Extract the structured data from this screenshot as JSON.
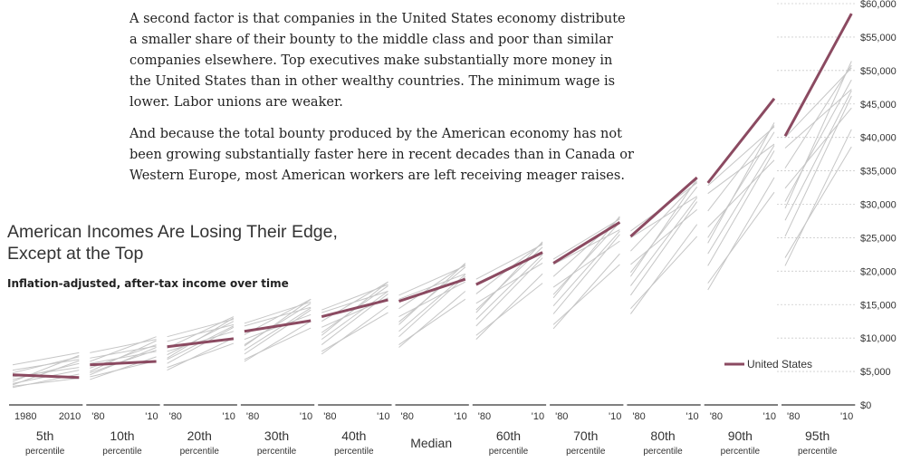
{
  "article": {
    "paragraphs": [
      "A second factor is that companies in the United States economy distribute a smaller share of their bounty to the middle class and poor than similar companies elsewhere. Top executives make substantially more money in the United States than in other wealthy countries. The minimum wage is lower. Labor unions are weaker.",
      "And because the total bounty produced by the American economy has not been growing substantially faster here in recent decades than in Canada or Western Europe, most American workers are left receiving meager raises."
    ]
  },
  "chart_title": {
    "line1": "American Incomes Are Losing Their Edge,",
    "line2": "Except at the Top"
  },
  "chart_subtitle": "Inflation-adjusted, after-tax income over time",
  "colors": {
    "us": "#8b4a61",
    "other": "#c6c6c6",
    "grid": "#cccccc",
    "axis": "#000000",
    "text": "#333333"
  },
  "chart_data": {
    "type": "line",
    "title": "American Incomes Are Losing Their Edge, Except at the Top",
    "subtitle": "Inflation-adjusted, after-tax income over time",
    "ylim": [
      0,
      60000
    ],
    "yticks": [
      {
        "value": 0,
        "label": "$0"
      },
      {
        "value": 5000,
        "label": "$5,000"
      },
      {
        "value": 10000,
        "label": "$10,000"
      },
      {
        "value": 15000,
        "label": "$15,000"
      },
      {
        "value": 20000,
        "label": "$20,000"
      },
      {
        "value": 25000,
        "label": "$25,000"
      },
      {
        "value": 30000,
        "label": "$30,000"
      },
      {
        "value": 35000,
        "label": "$35,000"
      },
      {
        "value": 40000,
        "label": "$40,000"
      },
      {
        "value": 45000,
        "label": "$45,000"
      },
      {
        "value": 50000,
        "label": "$50,000"
      },
      {
        "value": 55000,
        "label": "$55,000"
      },
      {
        "value": 60000,
        "label": "$60,000"
      }
    ],
    "xrange": [
      1980,
      2010
    ],
    "legend": {
      "label": "United States",
      "position": "right"
    },
    "panels": [
      {
        "name": "5th",
        "sub": "percentile",
        "ticks": [
          "1980",
          "2010"
        ],
        "us": [
          4500,
          4100
        ],
        "others": [
          [
            3200,
            5200
          ],
          [
            3800,
            6200
          ],
          [
            2800,
            4000
          ],
          [
            4800,
            7200
          ],
          [
            5200,
            6800
          ],
          [
            3500,
            7400
          ],
          [
            2600,
            4600
          ],
          [
            6000,
            7800
          ],
          [
            4200,
            5600
          ],
          [
            3000,
            6600
          ]
        ]
      },
      {
        "name": "10th",
        "sub": "percentile",
        "ticks": [
          "'80",
          "'10"
        ],
        "us": [
          6000,
          6500
        ],
        "others": [
          [
            4800,
            8200
          ],
          [
            5500,
            9000
          ],
          [
            4200,
            6600
          ],
          [
            6500,
            10200
          ],
          [
            7000,
            8800
          ],
          [
            5000,
            9600
          ],
          [
            3800,
            7200
          ],
          [
            7800,
            9800
          ],
          [
            6200,
            8000
          ],
          [
            4500,
            8600
          ]
        ]
      },
      {
        "name": "20th",
        "sub": "percentile",
        "ticks": [
          "'80",
          "'10"
        ],
        "us": [
          8700,
          9900
        ],
        "others": [
          [
            6800,
            11800
          ],
          [
            7500,
            12500
          ],
          [
            5600,
            9200
          ],
          [
            8500,
            13200
          ],
          [
            9500,
            12000
          ],
          [
            7000,
            13000
          ],
          [
            5200,
            10000
          ],
          [
            10200,
            12800
          ],
          [
            8000,
            11000
          ],
          [
            6200,
            11600
          ]
        ]
      },
      {
        "name": "30th",
        "sub": "percentile",
        "ticks": [
          "'80",
          "'10"
        ],
        "us": [
          11000,
          12600
        ],
        "others": [
          [
            8200,
            14500
          ],
          [
            9000,
            15200
          ],
          [
            6800,
            11500
          ],
          [
            10500,
            15800
          ],
          [
            11800,
            14600
          ],
          [
            8800,
            15800
          ],
          [
            6500,
            12500
          ],
          [
            12200,
            15400
          ],
          [
            9800,
            13500
          ],
          [
            7600,
            14200
          ]
        ]
      },
      {
        "name": "40th",
        "sub": "percentile",
        "ticks": [
          "'80",
          "'10"
        ],
        "us": [
          13200,
          15700
        ],
        "others": [
          [
            9800,
            17000
          ],
          [
            10800,
            17800
          ],
          [
            8000,
            13800
          ],
          [
            12500,
            18400
          ],
          [
            13800,
            17000
          ],
          [
            10400,
            18400
          ],
          [
            7600,
            14800
          ],
          [
            14200,
            18000
          ],
          [
            11600,
            16000
          ],
          [
            9000,
            16600
          ]
        ]
      },
      {
        "name": "Median",
        "sub": "",
        "ticks": [
          "'80",
          "'10"
        ],
        "us": [
          15500,
          18800
        ],
        "others": [
          [
            11000,
            19500
          ],
          [
            12400,
            20600
          ],
          [
            9000,
            15800
          ],
          [
            14400,
            21000
          ],
          [
            15800,
            19600
          ],
          [
            12000,
            21200
          ],
          [
            8600,
            17000
          ],
          [
            16400,
            20800
          ],
          [
            13200,
            18400
          ],
          [
            10200,
            19200
          ]
        ]
      },
      {
        "name": "60th",
        "sub": "percentile",
        "ticks": [
          "'80",
          "'10"
        ],
        "us": [
          18000,
          22800
        ],
        "others": [
          [
            12800,
            22500
          ],
          [
            14200,
            23600
          ],
          [
            10400,
            18200
          ],
          [
            16600,
            24200
          ],
          [
            18200,
            22600
          ],
          [
            13800,
            24400
          ],
          [
            9800,
            19600
          ],
          [
            18800,
            24000
          ],
          [
            15200,
            21200
          ],
          [
            11800,
            22000
          ]
        ]
      },
      {
        "name": "70th",
        "sub": "percentile",
        "ticks": [
          "'80",
          "'10"
        ],
        "us": [
          21200,
          27300
        ],
        "others": [
          [
            14800,
            26000
          ],
          [
            16500,
            27300
          ],
          [
            12000,
            21000
          ],
          [
            19200,
            28000
          ],
          [
            21000,
            26200
          ],
          [
            16000,
            28200
          ],
          [
            11400,
            22600
          ],
          [
            21800,
            27800
          ],
          [
            17600,
            24500
          ],
          [
            13600,
            25500
          ]
        ]
      },
      {
        "name": "80th",
        "sub": "percentile",
        "ticks": [
          "'80",
          "'10"
        ],
        "us": [
          25200,
          34000
        ],
        "others": [
          [
            17800,
            31000
          ],
          [
            19800,
            32600
          ],
          [
            14400,
            25200
          ],
          [
            23000,
            33400
          ],
          [
            25000,
            31200
          ],
          [
            19200,
            33800
          ],
          [
            13600,
            27000
          ],
          [
            26000,
            33200
          ],
          [
            21000,
            29200
          ],
          [
            16400,
            30400
          ]
        ]
      },
      {
        "name": "90th",
        "sub": "percentile",
        "ticks": [
          "'80",
          "'10"
        ],
        "us": [
          33200,
          45800
        ],
        "others": [
          [
            22600,
            38800
          ],
          [
            25000,
            40800
          ],
          [
            18200,
            31800
          ],
          [
            29000,
            41800
          ],
          [
            31600,
            39000
          ],
          [
            24200,
            42200
          ],
          [
            17200,
            34000
          ],
          [
            32800,
            41600
          ],
          [
            26600,
            36600
          ],
          [
            20800,
            38000
          ]
        ]
      },
      {
        "name": "95th",
        "sub": "percentile",
        "ticks": [
          "'80",
          "'10"
        ],
        "us": [
          40200,
          58500
        ],
        "others": [
          [
            27600,
            47000
          ],
          [
            30400,
            48600
          ],
          [
            22000,
            38600
          ],
          [
            35400,
            50800
          ],
          [
            38400,
            47200
          ],
          [
            29400,
            51400
          ],
          [
            20800,
            41200
          ],
          [
            40000,
            50400
          ],
          [
            32400,
            44400
          ],
          [
            25200,
            46200
          ]
        ]
      }
    ]
  }
}
